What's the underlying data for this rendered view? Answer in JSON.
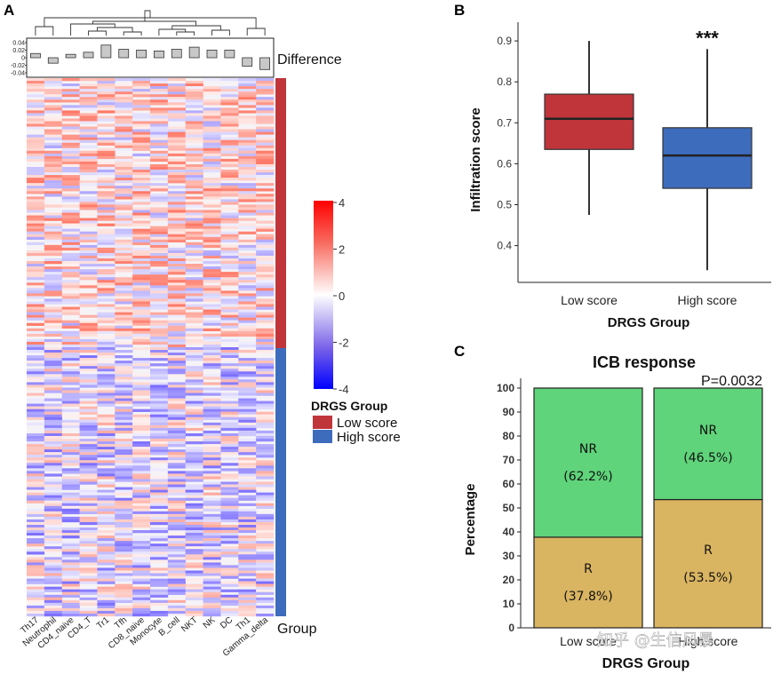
{
  "chart_data": [
    {
      "panel": "A",
      "type": "heatmap",
      "columns": [
        "Th17",
        "Neutrophil",
        "CD4_naive",
        "CD4_T",
        "Tr1",
        "Tfh",
        "CD8_naive",
        "Monocyte",
        "B_cell",
        "NKT",
        "NK",
        "DC",
        "Th1",
        "Gamma_delta"
      ],
      "top_bar": {
        "label": "Difference",
        "ticks": [
          "0.04",
          "0.02",
          "0",
          "-0.02",
          "-0.04"
        ],
        "values": [
          0.01,
          -0.013,
          0.008,
          0.013,
          0.03,
          0.02,
          0.018,
          0.016,
          0.02,
          0.025,
          0.018,
          0.018,
          -0.02,
          -0.028
        ]
      },
      "color_scale": {
        "ticks": [
          "4",
          "2",
          "0",
          "-2",
          "-4"
        ],
        "min": -4,
        "max": 4
      },
      "group_bar_label": "Group",
      "legend_title": "DRGS Group",
      "legend": [
        {
          "label": "Low score",
          "color": "#C0353A"
        },
        {
          "label": "High score",
          "color": "#3E6CBD"
        }
      ]
    },
    {
      "panel": "B",
      "type": "box",
      "ylabel": "Infiltration score",
      "xlabel": "DRGS Group",
      "ylim": [
        0.32,
        0.96
      ],
      "yticks": [
        "0.9",
        "0.8",
        "0.7",
        "0.6",
        "0.5",
        "0.4"
      ],
      "significance": "***",
      "groups": [
        {
          "name": "Low score",
          "color": "#C0353A",
          "min": 0.475,
          "q1": 0.635,
          "median": 0.71,
          "q3": 0.77,
          "max": 0.9
        },
        {
          "name": "High score",
          "color": "#3E6CBD",
          "min": 0.34,
          "q1": 0.54,
          "median": 0.62,
          "q3": 0.688,
          "max": 0.88
        }
      ]
    },
    {
      "panel": "C",
      "type": "bar",
      "stacked": true,
      "title": "ICB response",
      "pvalue": "P=0.0032",
      "ylabel": "Percentage",
      "xlabel": "DRGS Group",
      "ylim": [
        0,
        100
      ],
      "yticks": [
        "100",
        "90",
        "80",
        "70",
        "60",
        "50",
        "40",
        "30",
        "20",
        "10",
        "0"
      ],
      "categories": [
        "Low score",
        "High score"
      ],
      "series": [
        {
          "name": "R",
          "color": "#D9B461",
          "values": [
            37.8,
            53.5
          ],
          "labels": [
            "(37.8%)",
            "(53.5%)"
          ]
        },
        {
          "name": "NR",
          "color": "#5FD47A",
          "values": [
            62.2,
            46.5
          ],
          "labels": [
            "(62.2%)",
            "(46.5%)"
          ]
        }
      ]
    }
  ],
  "watermark": "知乎 @生信风暴"
}
